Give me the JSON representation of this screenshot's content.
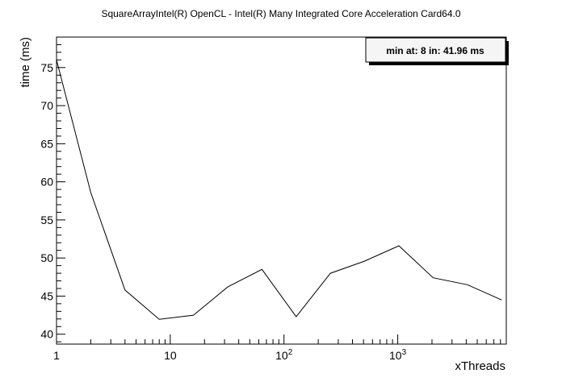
{
  "chart_data": {
    "type": "line",
    "title": "SquareArrayIntel(R) OpenCL - Intel(R) Many Integrated Core Acceleration Card64.0",
    "xlabel": "xThreads",
    "ylabel": "time (ms)",
    "x_scale": "log",
    "xlim": [
      1,
      9000
    ],
    "ylim": [
      38.7,
      79
    ],
    "x_tick_labels": [
      {
        "value": 1,
        "base": "1",
        "exp": ""
      },
      {
        "value": 10,
        "base": "10",
        "exp": ""
      },
      {
        "value": 100,
        "base": "10",
        "exp": "2"
      },
      {
        "value": 1000,
        "base": "10",
        "exp": "3"
      }
    ],
    "y_ticks": [
      40,
      45,
      50,
      55,
      60,
      65,
      70,
      75
    ],
    "y_tick_labels": [
      "40",
      "45",
      "50",
      "55",
      "60",
      "65",
      "70",
      "75"
    ],
    "grid": false,
    "series": [
      {
        "x": [
          1,
          2,
          4,
          8,
          16,
          32,
          64,
          128,
          256,
          512,
          1024,
          2048,
          4096,
          8192
        ],
        "y": [
          76.0,
          58.6,
          45.8,
          41.96,
          42.5,
          46.2,
          48.5,
          42.3,
          48.0,
          49.6,
          51.6,
          47.4,
          46.5,
          44.5
        ]
      }
    ],
    "annotation": {
      "text": "min at: 8 in: 41.96 ms",
      "position": "top-right"
    }
  }
}
